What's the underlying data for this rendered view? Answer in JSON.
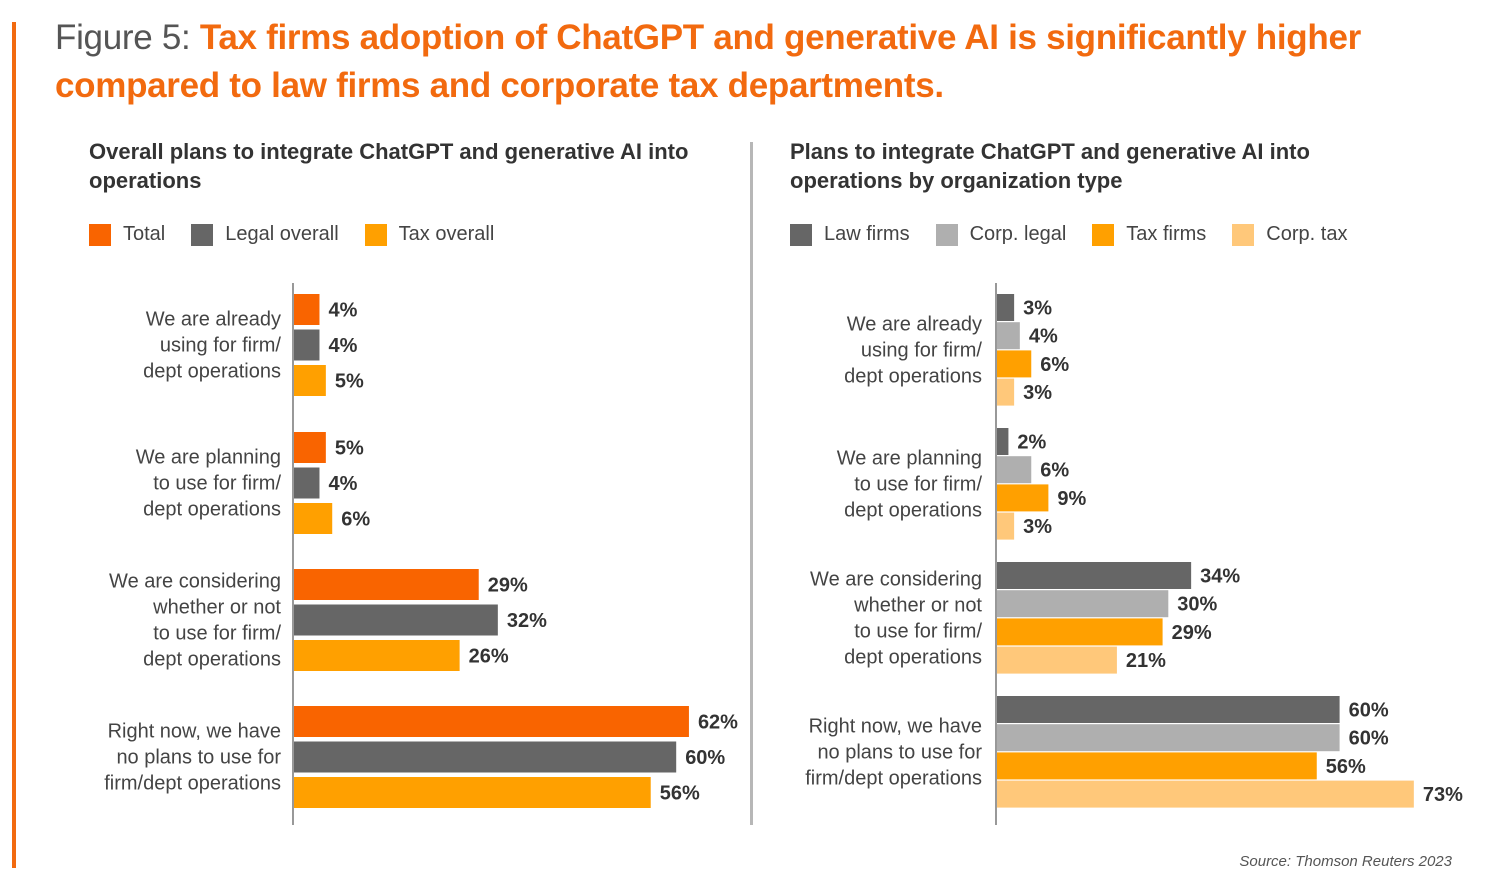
{
  "figure": {
    "number": "Figure 5:",
    "headline": "Tax firms adoption of ChatGPT and generative AI is significantly higher compared to law firms and corporate tax departments."
  },
  "source": "Source: Thomson Reuters 2023",
  "chart_data": [
    {
      "type": "bar",
      "orientation": "horizontal",
      "title": "Overall plans to integrate ChatGPT and generative AI into operations",
      "xlabel": "",
      "ylabel": "",
      "xlim": [
        0,
        100
      ],
      "grid": false,
      "legend_placement": "top-left",
      "categories": [
        [
          "We are already",
          "using for firm/",
          "dept operations"
        ],
        [
          "We are planning",
          "to use for firm/",
          "dept operations"
        ],
        [
          "We are considering",
          "whether or not",
          "to use for firm/",
          "dept operations"
        ],
        [
          "Right now, we have",
          "no plans to use for",
          "firm/dept operations"
        ]
      ],
      "series": [
        {
          "name": "Total",
          "color": "#f96400",
          "values": [
            4,
            5,
            29,
            62
          ]
        },
        {
          "name": "Legal overall",
          "color": "#666666",
          "values": [
            4,
            4,
            32,
            60
          ]
        },
        {
          "name": "Tax overall",
          "color": "#ffa000",
          "values": [
            5,
            6,
            26,
            56
          ]
        }
      ],
      "value_suffix": "%"
    },
    {
      "type": "bar",
      "orientation": "horizontal",
      "title": "Plans to integrate ChatGPT and generative AI into operations by organization type",
      "xlabel": "",
      "ylabel": "",
      "xlim": [
        0,
        100
      ],
      "grid": false,
      "legend_placement": "top-left",
      "categories": [
        [
          "We are already",
          "using for firm/",
          "dept operations"
        ],
        [
          "We are planning",
          "to use for firm/",
          "dept operations"
        ],
        [
          "We are considering",
          "whether or not",
          "to use for firm/",
          "dept operations"
        ],
        [
          "Right now, we have",
          "no plans to use for",
          "firm/dept operations"
        ]
      ],
      "series": [
        {
          "name": "Law firms",
          "color": "#666666",
          "values": [
            3,
            2,
            34,
            60
          ]
        },
        {
          "name": "Corp. legal",
          "color": "#afafaf",
          "values": [
            4,
            6,
            30,
            60
          ]
        },
        {
          "name": "Tax firms",
          "color": "#ffa000",
          "values": [
            6,
            9,
            29,
            56
          ]
        },
        {
          "name": "Corp. tax",
          "color": "#ffc87a",
          "values": [
            3,
            3,
            21,
            73
          ]
        }
      ],
      "value_suffix": "%"
    }
  ]
}
